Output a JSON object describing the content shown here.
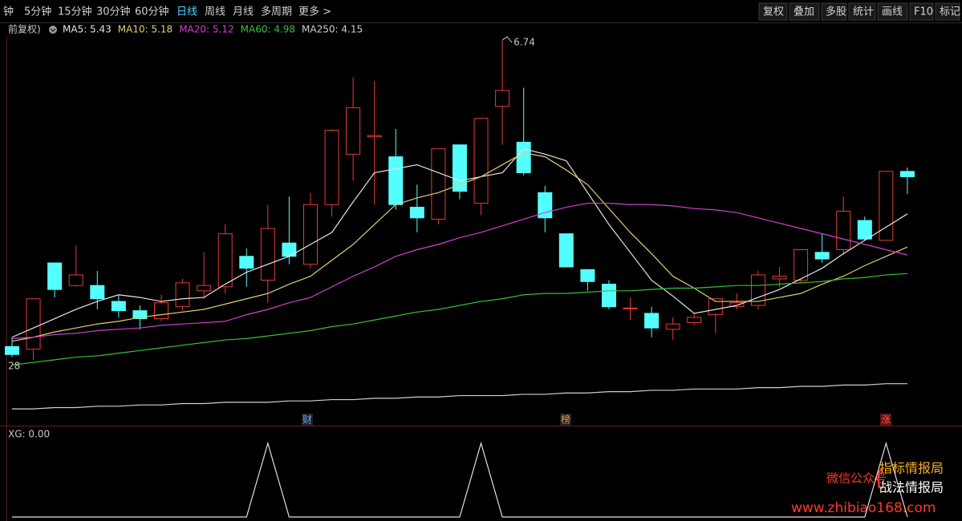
{
  "toolbar": {
    "periods": [
      "钟",
      "5分钟",
      "15分钟",
      "30分钟",
      "60分钟",
      "日线",
      "周线",
      "月线",
      "多周期",
      "更多 >"
    ],
    "tools": [
      "复权",
      "叠加",
      "多股",
      "统计",
      "画线",
      "F10",
      "标记"
    ]
  },
  "legend_prefix": "前复权)",
  "event_markers": [
    "财",
    "榜",
    "涨"
  ],
  "watermark": {
    "label": "微信公众号",
    "brands": [
      "指标情报局",
      "战法情报局"
    ],
    "url": "www.zhibiao168.com"
  },
  "chart_data": [
    {
      "type": "candlestick",
      "ylim": [
        3.84,
        6.77
      ],
      "high_label": "6.74",
      "low_label": "28",
      "up_color": "#e83a3a",
      "down_color": "#54ffff",
      "open": [
        4.43,
        4.41,
        5.06,
        4.89,
        4.89,
        4.77,
        4.7,
        4.64,
        4.73,
        4.85,
        4.88,
        5.11,
        4.93,
        5.21,
        5.05,
        5.5,
        5.88,
        6.01,
        5.86,
        5.48,
        5.39,
        5.95,
        5.51,
        6.24,
        5.97,
        5.59,
        5.28,
        5.01,
        4.9,
        4.72,
        4.68,
        4.56,
        4.61,
        4.67,
        4.73,
        4.74,
        4.94,
        4.93,
        5.14,
        5.16,
        5.38,
        5.23,
        5.75
      ],
      "high": [
        4.5,
        4.79,
        5.06,
        5.19,
        5.0,
        4.82,
        4.74,
        4.82,
        4.94,
        5.14,
        5.35,
        5.17,
        5.5,
        5.56,
        5.59,
        6.07,
        6.46,
        6.43,
        6.07,
        5.65,
        5.92,
        5.95,
        6.15,
        6.74,
        6.38,
        5.64,
        5.28,
        5.01,
        4.93,
        4.8,
        4.73,
        4.65,
        4.68,
        4.79,
        4.83,
        5.0,
        5.03,
        5.16,
        5.28,
        5.56,
        5.41,
        5.75,
        5.78
      ],
      "low": [
        4.35,
        4.33,
        4.8,
        4.88,
        4.71,
        4.65,
        4.56,
        4.62,
        4.7,
        4.79,
        4.83,
        4.88,
        4.76,
        5.05,
        5.02,
        5.41,
        5.68,
        5.5,
        5.46,
        5.29,
        5.35,
        5.54,
        5.42,
        5.95,
        5.72,
        5.29,
        5.03,
        4.85,
        4.71,
        4.63,
        4.5,
        4.48,
        4.59,
        4.53,
        4.71,
        4.71,
        4.88,
        4.91,
        5.06,
        5.12,
        5.23,
        5.23,
        5.58
      ],
      "close": [
        4.37,
        4.79,
        4.86,
        4.97,
        4.79,
        4.7,
        4.64,
        4.76,
        4.91,
        4.89,
        5.28,
        5.02,
        5.32,
        5.11,
        5.5,
        6.06,
        6.23,
        6.02,
        5.5,
        5.4,
        5.92,
        5.6,
        6.15,
        6.36,
        5.74,
        5.4,
        5.03,
        4.92,
        4.73,
        4.72,
        4.57,
        4.6,
        4.65,
        4.79,
        4.76,
        4.97,
        4.96,
        5.16,
        5.09,
        5.45,
        5.24,
        5.75,
        5.71
      ],
      "series": [
        {
          "name": "MA5: 5.43",
          "color": "#e6e6e6",
          "values": [
            4.5,
            4.57,
            4.64,
            4.71,
            4.77,
            4.82,
            4.8,
            4.77,
            4.79,
            4.8,
            4.9,
            4.99,
            5.05,
            5.11,
            5.2,
            5.29,
            5.52,
            5.74,
            5.77,
            5.8,
            5.74,
            5.68,
            5.71,
            5.74,
            5.92,
            5.88,
            5.83,
            5.59,
            5.35,
            5.14,
            4.93,
            4.81,
            4.68,
            4.71,
            4.74,
            4.8,
            4.86,
            4.94,
            5.02,
            5.13,
            5.23,
            5.33,
            5.43
          ]
        },
        {
          "name": "MA10: 5.18",
          "color": "#e0d070",
          "values": [
            4.47,
            4.5,
            4.54,
            4.57,
            4.6,
            4.62,
            4.65,
            4.67,
            4.69,
            4.71,
            4.75,
            4.79,
            4.83,
            4.9,
            4.96,
            5.08,
            5.2,
            5.35,
            5.5,
            5.55,
            5.59,
            5.65,
            5.71,
            5.8,
            5.89,
            5.86,
            5.76,
            5.65,
            5.47,
            5.29,
            5.13,
            4.96,
            4.87,
            4.77,
            4.77,
            4.77,
            4.8,
            4.83,
            4.9,
            4.96,
            5.04,
            5.11,
            5.18
          ]
        },
        {
          "name": "MA20: 5.12",
          "color": "#d040d0",
          "values": [
            4.49,
            4.5,
            4.52,
            4.53,
            4.55,
            4.56,
            4.57,
            4.59,
            4.6,
            4.61,
            4.62,
            4.67,
            4.71,
            4.76,
            4.8,
            4.88,
            4.96,
            5.03,
            5.11,
            5.16,
            5.2,
            5.25,
            5.29,
            5.34,
            5.39,
            5.44,
            5.48,
            5.51,
            5.51,
            5.5,
            5.5,
            5.49,
            5.47,
            5.46,
            5.44,
            5.4,
            5.36,
            5.32,
            5.28,
            5.24,
            5.2,
            5.16,
            5.12
          ]
        },
        {
          "name": "MA60: 4.98",
          "color": "#38c038",
          "values": [
            4.29,
            4.31,
            4.33,
            4.35,
            4.36,
            4.38,
            4.4,
            4.42,
            4.44,
            4.46,
            4.48,
            4.49,
            4.51,
            4.53,
            4.55,
            4.58,
            4.6,
            4.63,
            4.66,
            4.69,
            4.71,
            4.74,
            4.77,
            4.79,
            4.82,
            4.83,
            4.83,
            4.84,
            4.85,
            4.85,
            4.86,
            4.87,
            4.87,
            4.88,
            4.89,
            4.89,
            4.9,
            4.91,
            4.92,
            4.94,
            4.95,
            4.97,
            4.98
          ]
        },
        {
          "name": "MA250: 4.15",
          "color": "#cfcfcf",
          "values": [
            3.96,
            3.96,
            3.97,
            3.97,
            3.98,
            3.98,
            3.99,
            3.99,
            4.0,
            4.0,
            4.01,
            4.01,
            4.01,
            4.02,
            4.02,
            4.03,
            4.03,
            4.04,
            4.04,
            4.05,
            4.05,
            4.06,
            4.06,
            4.06,
            4.07,
            4.07,
            4.08,
            4.08,
            4.09,
            4.09,
            4.1,
            4.1,
            4.11,
            4.11,
            4.11,
            4.12,
            4.12,
            4.13,
            4.13,
            4.14,
            4.14,
            4.15,
            4.15
          ]
        }
      ]
    },
    {
      "type": "line",
      "title": "XG: 0.00",
      "ylim": [
        0,
        1
      ],
      "color": "#e0e0e0",
      "values": [
        0,
        0,
        0,
        0,
        0,
        0,
        0,
        0,
        0,
        0,
        0,
        0,
        1,
        0,
        0,
        0,
        0,
        0,
        0,
        0,
        0,
        0,
        1,
        0,
        0,
        0,
        0,
        0,
        0,
        0,
        0,
        0,
        0,
        0,
        0,
        0,
        0,
        0,
        0,
        0,
        0,
        1,
        0
      ]
    }
  ]
}
